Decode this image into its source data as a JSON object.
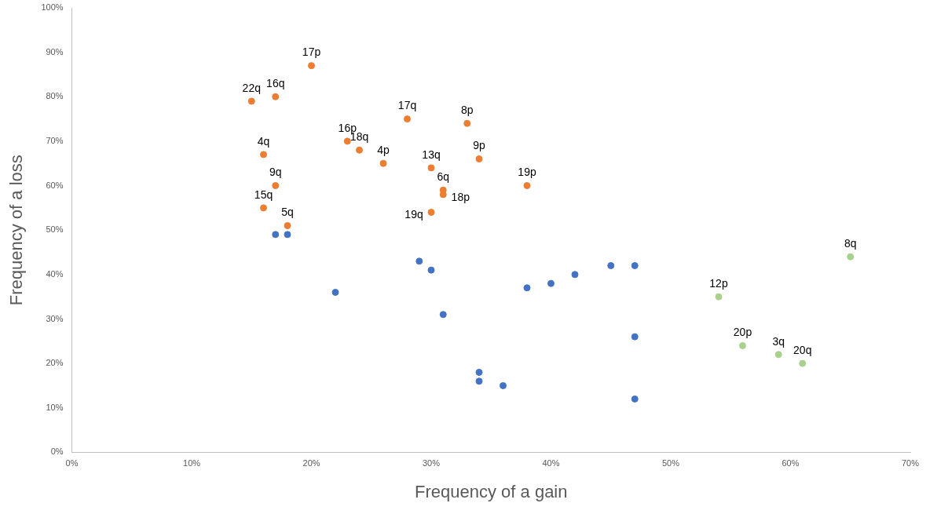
{
  "chart_data": {
    "type": "scatter",
    "xlabel": "Frequency of a gain",
    "ylabel": "Frequency of a loss",
    "xlim": [
      0,
      70
    ],
    "ylim": [
      0,
      100
    ],
    "xticks": [
      {
        "value": 0,
        "label": "0%"
      },
      {
        "value": 10,
        "label": "10%"
      },
      {
        "value": 20,
        "label": "20%"
      },
      {
        "value": 30,
        "label": "30%"
      },
      {
        "value": 40,
        "label": "40%"
      },
      {
        "value": 50,
        "label": "50%"
      },
      {
        "value": 60,
        "label": "60%"
      },
      {
        "value": 70,
        "label": "70%"
      }
    ],
    "yticks": [
      {
        "value": 0,
        "label": "0%"
      },
      {
        "value": 10,
        "label": "10%"
      },
      {
        "value": 20,
        "label": "20%"
      },
      {
        "value": 30,
        "label": "30%"
      },
      {
        "value": 40,
        "label": "40%"
      },
      {
        "value": 50,
        "label": "50%"
      },
      {
        "value": 60,
        "label": "60%"
      },
      {
        "value": 70,
        "label": "70%"
      },
      {
        "value": 80,
        "label": "80%"
      },
      {
        "value": 90,
        "label": "90%"
      },
      {
        "value": 100,
        "label": "100%"
      }
    ],
    "marker": "circle",
    "grid": false,
    "legend": false,
    "series": [
      {
        "color": "#ed7d31",
        "x": [
          20,
          17,
          15,
          28,
          33,
          23,
          24,
          26,
          16,
          30,
          34,
          17,
          31,
          31,
          38,
          16,
          30,
          18
        ],
        "values": [
          87,
          80,
          79,
          75,
          74,
          70,
          68,
          65,
          67,
          64,
          66,
          60,
          59,
          58,
          60,
          55,
          54,
          51
        ]
      },
      {
        "color": "#4472c4",
        "x": [
          17,
          18,
          22,
          29,
          30,
          31,
          34,
          34,
          36,
          38,
          40,
          42,
          45,
          47,
          47,
          47
        ],
        "values": [
          49,
          49,
          36,
          43,
          41,
          31,
          18,
          16,
          15,
          37,
          38,
          40,
          42,
          42,
          26,
          12
        ]
      },
      {
        "color": "#a9d18e",
        "x": [
          65,
          54,
          56,
          59,
          61
        ],
        "values": [
          44,
          35,
          24,
          22,
          20
        ]
      }
    ],
    "annotations": [
      {
        "text": "17p",
        "x": 20,
        "y": 87
      },
      {
        "text": "16q",
        "x": 17,
        "y": 80
      },
      {
        "text": "22q",
        "x": 15,
        "y": 79
      },
      {
        "text": "17q",
        "x": 28,
        "y": 75
      },
      {
        "text": "8p",
        "x": 33,
        "y": 74
      },
      {
        "text": "16p",
        "x": 23,
        "y": 70
      },
      {
        "text": "18q",
        "x": 24,
        "y": 68
      },
      {
        "text": "4p",
        "x": 26,
        "y": 65
      },
      {
        "text": "4q",
        "x": 16,
        "y": 67
      },
      {
        "text": "13q",
        "x": 30,
        "y": 64
      },
      {
        "text": "9p",
        "x": 34,
        "y": 66
      },
      {
        "text": "9q",
        "x": 17,
        "y": 60
      },
      {
        "text": "6q",
        "x": 31,
        "y": 59
      },
      {
        "text": "18p",
        "x": 31,
        "y": 58
      },
      {
        "text": "19p",
        "x": 38,
        "y": 60
      },
      {
        "text": "15q",
        "x": 16,
        "y": 55
      },
      {
        "text": "19q",
        "x": 30,
        "y": 54
      },
      {
        "text": "5q",
        "x": 18,
        "y": 51
      },
      {
        "text": "8q",
        "x": 65,
        "y": 44
      },
      {
        "text": "12p",
        "x": 54,
        "y": 35
      },
      {
        "text": "20p",
        "x": 56,
        "y": 24
      },
      {
        "text": "3q",
        "x": 59,
        "y": 22
      },
      {
        "text": "20q",
        "x": 61,
        "y": 20
      }
    ]
  }
}
